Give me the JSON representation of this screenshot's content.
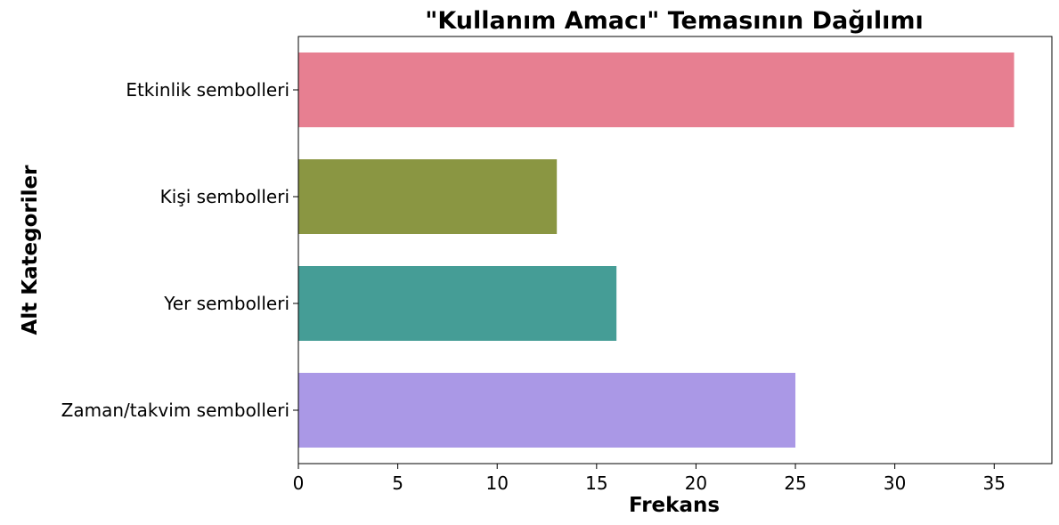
{
  "chart_data": {
    "type": "bar",
    "orientation": "horizontal",
    "title": "\"Kullanım Amacı\" Temasının Dağılımı",
    "xlabel": "Frekans",
    "ylabel": "Alt Kategoriler",
    "categories": [
      "Etkinlik sembolleri",
      "Kişi sembolleri",
      "Yer sembolleri",
      "Zaman/takvim sembolleri"
    ],
    "values": [
      36,
      13,
      16,
      25
    ],
    "colors": [
      "#e77f91",
      "#8a9642",
      "#459d96",
      "#aa98e6"
    ],
    "xlim": [
      0,
      37.9
    ],
    "xticks": [
      0,
      5,
      10,
      15,
      20,
      25,
      30,
      35
    ],
    "grid": false,
    "legend": "none"
  }
}
